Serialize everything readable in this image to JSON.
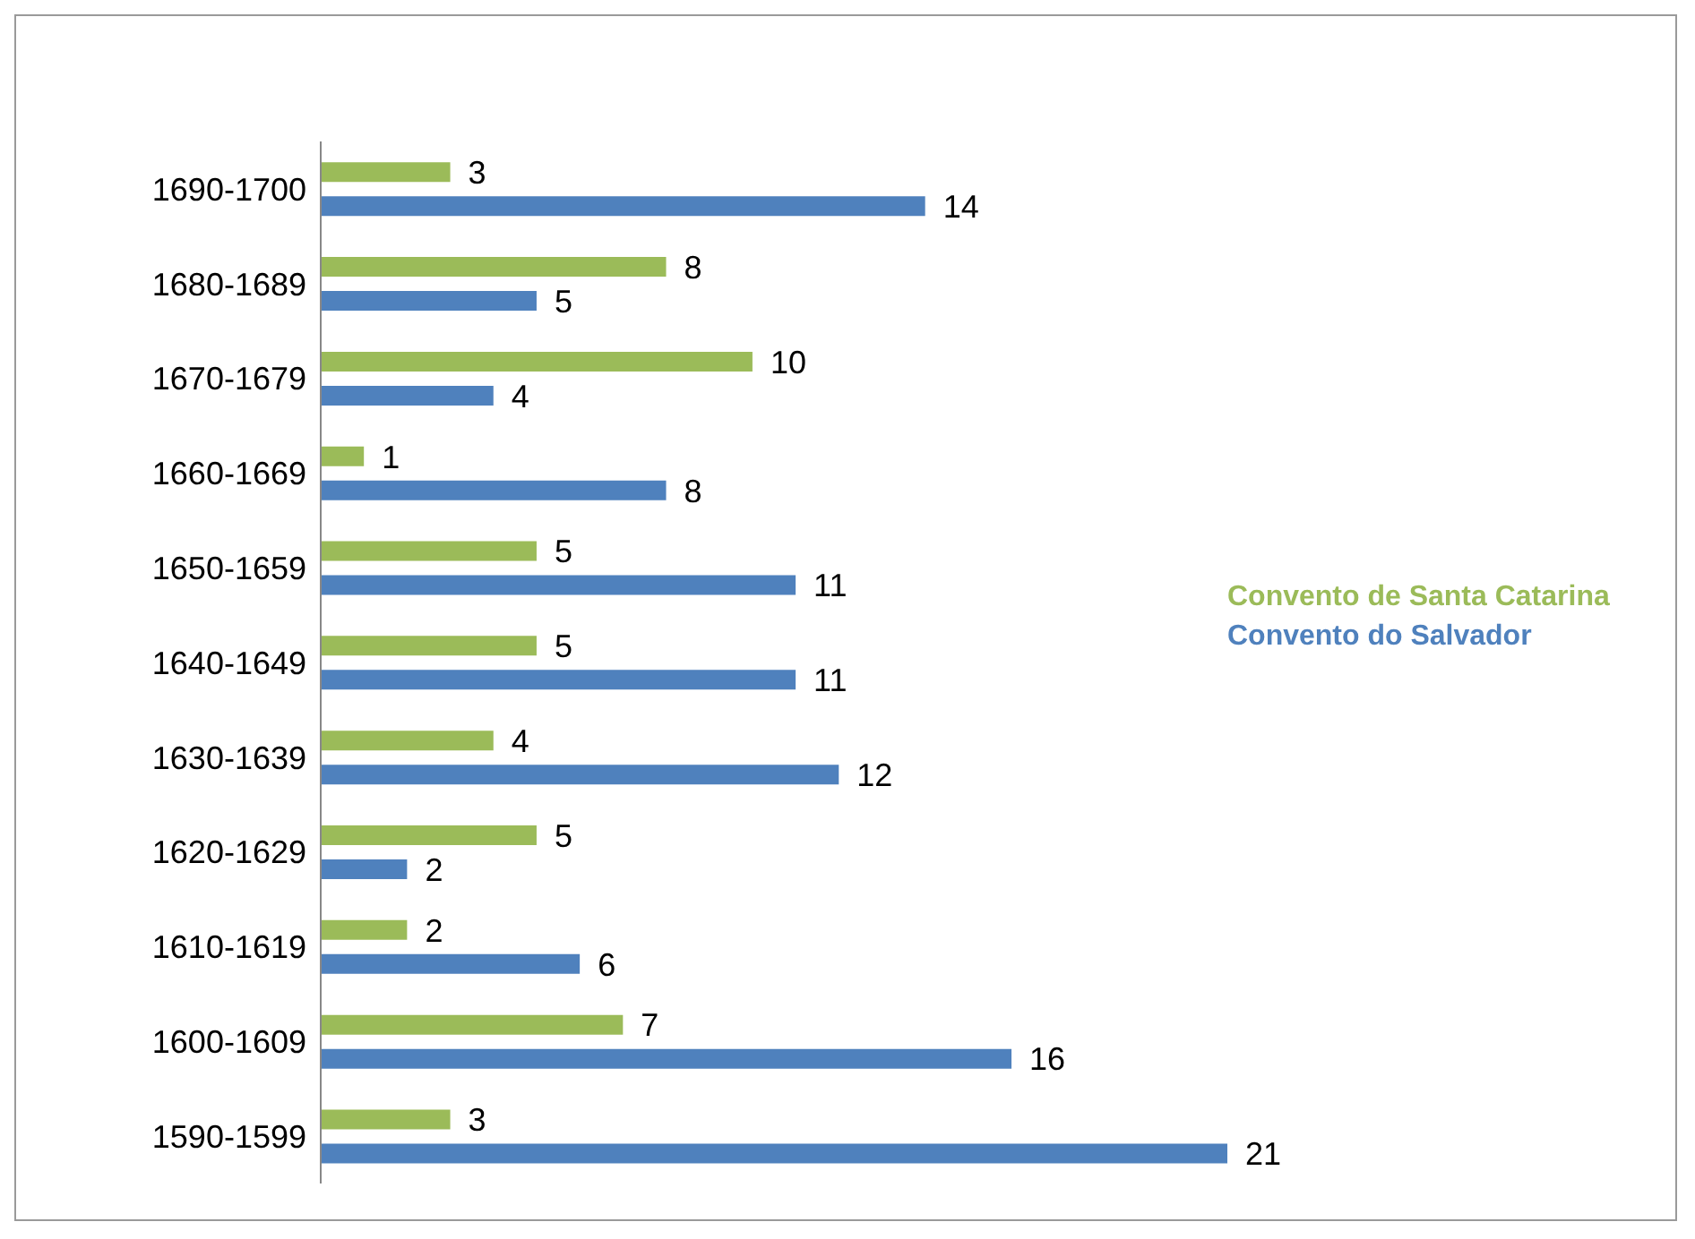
{
  "chart_data": {
    "type": "bar",
    "orientation": "horizontal",
    "categories": [
      "1690-1700",
      "1680-1689",
      "1670-1679",
      "1660-1669",
      "1650-1659",
      "1640-1649",
      "1630-1639",
      "1620-1629",
      "1610-1619",
      "1600-1609",
      "1590-1599"
    ],
    "series": [
      {
        "name": "Convento de Santa Catarina",
        "color": "#9bbb59",
        "values": [
          3,
          8,
          10,
          1,
          5,
          5,
          4,
          5,
          2,
          7,
          3
        ]
      },
      {
        "name": "Convento do  Salvador",
        "color": "#4f81bd",
        "values": [
          14,
          5,
          4,
          8,
          11,
          11,
          12,
          2,
          6,
          16,
          21
        ]
      }
    ],
    "data_labels": true,
    "legend": "right",
    "tick_labels": "y",
    "grid": false
  }
}
